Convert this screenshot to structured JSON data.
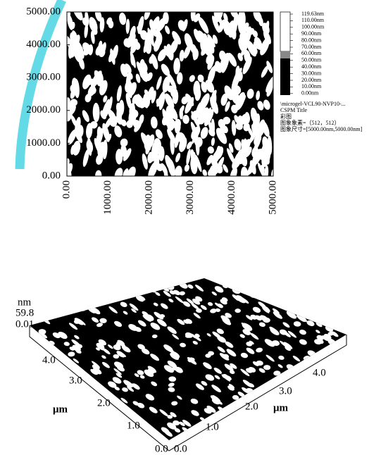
{
  "top_panel": {
    "y_tick_labels": [
      "5000.00",
      "4000.00",
      "3000.00",
      "2000.00",
      "1000.00",
      "0.00"
    ],
    "x_tick_labels": [
      "0.00",
      "1000.00",
      "2000.00",
      "3000.00",
      "4000.00",
      "5000.00"
    ],
    "colorbar_labels": [
      "119.63nm",
      "110.00nm",
      "100.00nm",
      "90.00nm",
      "80.00nm",
      "70.00nm",
      "60.00nm",
      "50.00nm",
      "40.00nm",
      "30.00nm",
      "20.00nm",
      "10.00nm",
      "0.00nm"
    ],
    "info_lines": [
      "\\microgel-VCL90-NVP10-...",
      "CSPM Title",
      "彩图",
      "图象象素=（512，512）",
      "图象尺寸=[5000.00nm,5000.00nm]"
    ]
  },
  "bottom_panel": {
    "z_unit": "nm",
    "z_labels": [
      "59.8",
      "0.01"
    ],
    "left_axis_labels": [
      "4.0",
      "3.0",
      "2.0",
      "1.0",
      "0.0"
    ],
    "left_axis_unit": "μm",
    "right_axis_labels": [
      "0.0",
      "1.0",
      "2.0",
      "3.0",
      "4.0"
    ],
    "right_axis_unit": "μm"
  }
}
